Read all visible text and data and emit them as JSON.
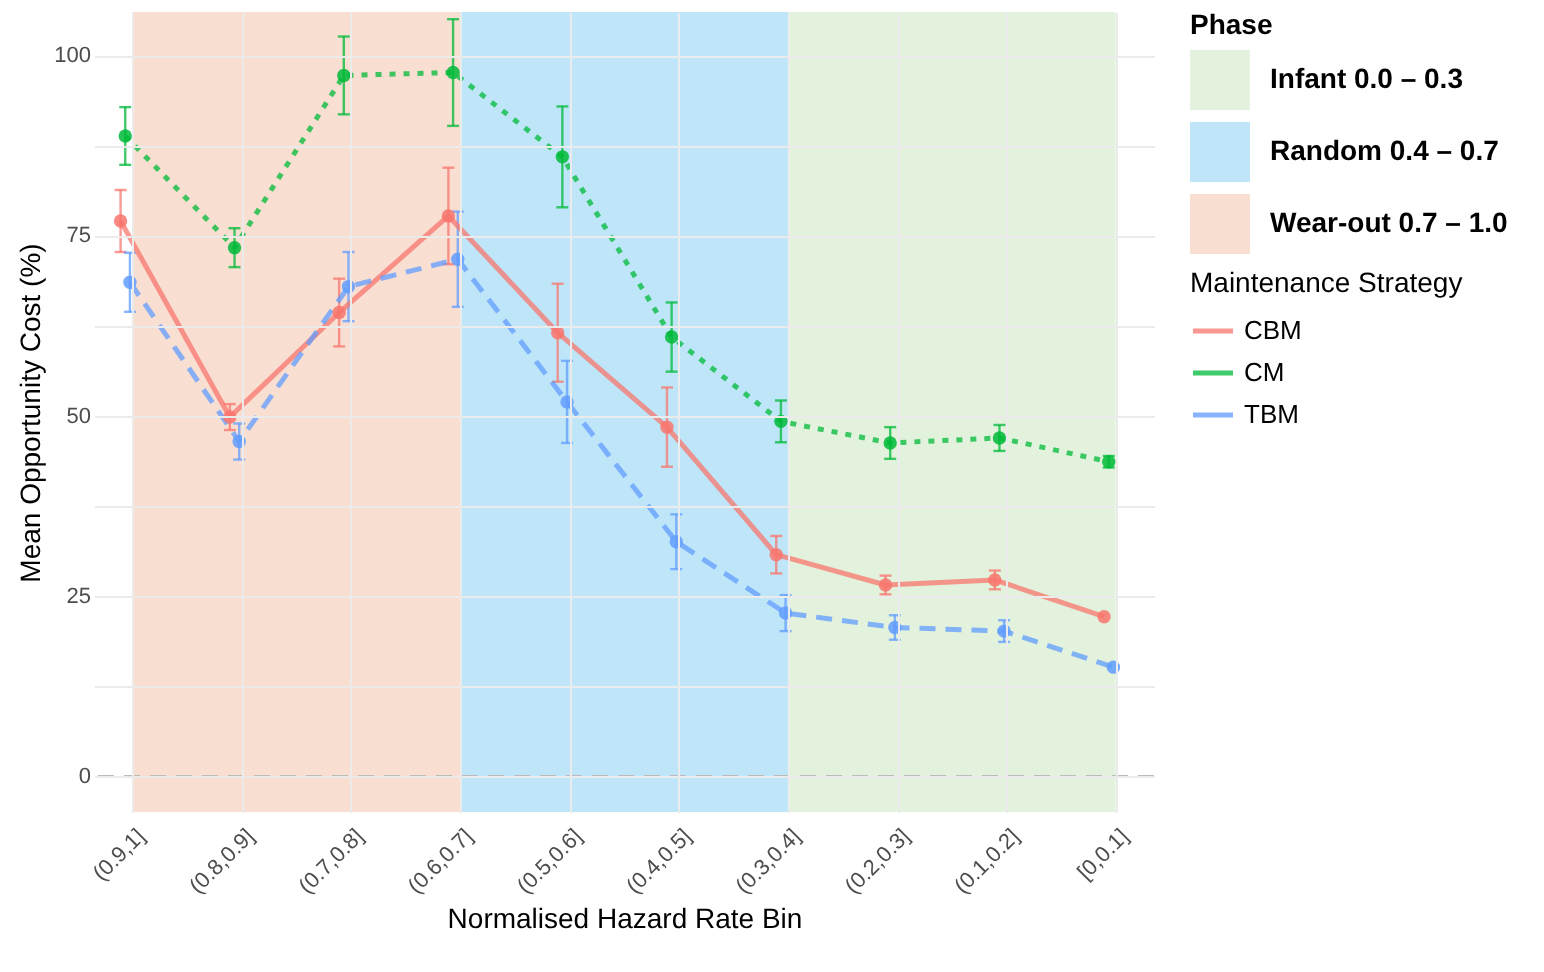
{
  "chart_data": {
    "type": "line",
    "xlabel": "Normalised Hazard Rate Bin",
    "ylabel": "Mean Opportunity Cost (%)",
    "legend_title": "Maintenance Strategy",
    "categories": [
      "(0.9,1]",
      "(0.8,0.9]",
      "(0.7,0.8]",
      "(0.6,0.7]",
      "(0.5,0.6]",
      "(0.4,0.5]",
      "(0.3,0.4]",
      "(0.2,0.3]",
      "(0.1,0.2]",
      "[0,0.1]"
    ],
    "series": [
      {
        "name": "CBM",
        "color": "#f8766d",
        "line_style": "solid",
        "values": [
          77,
          49.8,
          64.3,
          77.7,
          61.5,
          48.4,
          30.7,
          26.5,
          27.2,
          22.1
        ],
        "errors": [
          4.3,
          1.8,
          4.7,
          6.7,
          6.8,
          5.5,
          2.6,
          1.3,
          1.3,
          null
        ]
      },
      {
        "name": "CM",
        "color": "#00ba38",
        "line_style": "dotted",
        "values": [
          88.8,
          73.3,
          97.2,
          97.6,
          85.9,
          60.9,
          49.2,
          46.2,
          46.9,
          43.6
        ],
        "errors": [
          4,
          2.7,
          5.4,
          7.4,
          7,
          4.8,
          2.9,
          2.2,
          1.8,
          0.8
        ]
      },
      {
        "name": "TBM",
        "color": "#619cff",
        "line_style": "dashed",
        "values": [
          68.5,
          46.4,
          67.9,
          71.7,
          51.9,
          32.5,
          22.6,
          20.6,
          20.1,
          15.1
        ],
        "errors": [
          4.1,
          2.5,
          4.8,
          6.6,
          5.7,
          3.8,
          2.5,
          1.7,
          1.5,
          null
        ]
      }
    ],
    "ylim": [
      -5,
      106
    ],
    "yticks": [
      0,
      {
        "value": 12.5,
        "label": null
      },
      25,
      {
        "value": 37.5,
        "label": null
      },
      50,
      {
        "value": 62.5,
        "label": null
      },
      75,
      {
        "value": 87.5,
        "label": null
      },
      100
    ],
    "bands": [
      {
        "axis": "x",
        "from": "(0.3,0.4]",
        "to": "[0,0.1]",
        "label": "Infant",
        "color": "#e3f2dc"
      },
      {
        "axis": "x",
        "from": "(0.6,0.7]",
        "to": "(0.3,0.4]",
        "label": "Random",
        "color": "#bfe6f8"
      },
      {
        "axis": "x",
        "from": "(0.9,1]",
        "to": "(0.6,0.7]",
        "label": "Wear-out",
        "color": "#f8dfd2"
      }
    ],
    "ref_lines": [
      {
        "axis": "y",
        "value": 0,
        "color": "#bbbbbb",
        "line_style": "dashed"
      }
    ],
    "annotations": [
      "Phase",
      "0.0 – 0.3",
      "0.4 – 0.7",
      "0.7 – 1.0"
    ],
    "grid": true,
    "legend": "right",
    "marker": "circle"
  }
}
